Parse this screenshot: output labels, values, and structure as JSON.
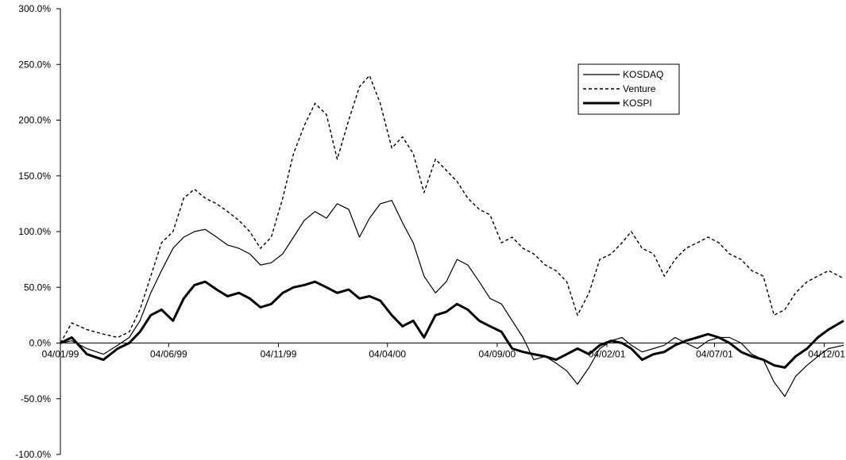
{
  "chart_data": {
    "type": "line",
    "title": "",
    "xlabel": "",
    "ylabel": "",
    "ylim": [
      -100,
      300
    ],
    "y_ticks": [
      "300.0%",
      "250.0%",
      "200.0%",
      "150.0%",
      "100.0%",
      "50.0%",
      "0.0%",
      "-50.0%",
      "-100.0%"
    ],
    "y_tick_values": [
      300,
      250,
      200,
      150,
      100,
      50,
      0,
      -50,
      -100
    ],
    "x_ticks": [
      "04/01/99",
      "04/06/99",
      "04/11/99",
      "04/04/00",
      "04/09/00",
      "04/02/01",
      "04/07/01",
      "04/12/01"
    ],
    "x_tick_dates": [
      "1999-01-04",
      "1999-06-04",
      "1999-11-04",
      "2000-04-04",
      "2000-09-04",
      "2001-02-04",
      "2001-07-04",
      "2001-12-04"
    ],
    "xlim": [
      "1999-01-04",
      "2001-12-31"
    ],
    "grid": false,
    "legend_position": "top-right",
    "legend": [
      "KOSDAQ",
      "Venture",
      "KOSPI"
    ],
    "series": [
      {
        "name": "KOSDAQ",
        "style": "thin-solid",
        "x": [
          "1999-01-04",
          "1999-01-20",
          "1999-02-10",
          "1999-03-05",
          "1999-03-25",
          "1999-04-10",
          "1999-04-25",
          "1999-05-10",
          "1999-05-25",
          "1999-06-10",
          "1999-06-25",
          "1999-07-10",
          "1999-07-25",
          "1999-08-10",
          "1999-08-25",
          "1999-09-10",
          "1999-09-25",
          "1999-10-10",
          "1999-10-25",
          "1999-11-10",
          "1999-11-25",
          "1999-12-10",
          "1999-12-25",
          "2000-01-10",
          "2000-01-25",
          "2000-02-10",
          "2000-02-25",
          "2000-03-10",
          "2000-03-25",
          "2000-04-10",
          "2000-04-25",
          "2000-05-10",
          "2000-05-25",
          "2000-06-10",
          "2000-06-25",
          "2000-07-10",
          "2000-07-25",
          "2000-08-10",
          "2000-08-25",
          "2000-09-10",
          "2000-09-25",
          "2000-10-10",
          "2000-10-25",
          "2000-11-10",
          "2000-11-25",
          "2000-12-10",
          "2000-12-25",
          "2001-01-10",
          "2001-01-25",
          "2001-02-10",
          "2001-02-25",
          "2001-03-10",
          "2001-03-25",
          "2001-04-10",
          "2001-04-25",
          "2001-05-10",
          "2001-05-25",
          "2001-06-10",
          "2001-06-25",
          "2001-07-10",
          "2001-07-25",
          "2001-08-10",
          "2001-08-25",
          "2001-09-10",
          "2001-09-25",
          "2001-10-10",
          "2001-10-25",
          "2001-11-10",
          "2001-11-25",
          "2001-12-10",
          "2001-12-31"
        ],
        "y": [
          0,
          2,
          -5,
          -10,
          -2,
          5,
          20,
          45,
          65,
          85,
          95,
          100,
          102,
          95,
          88,
          85,
          80,
          70,
          72,
          80,
          95,
          110,
          118,
          112,
          125,
          120,
          95,
          112,
          125,
          128,
          108,
          90,
          60,
          45,
          55,
          75,
          70,
          55,
          40,
          35,
          20,
          5,
          -15,
          -12,
          -18,
          -25,
          -37,
          -22,
          -5,
          2,
          5,
          -2,
          -8,
          -5,
          -2,
          5,
          0,
          -5,
          2,
          5,
          5,
          0,
          -10,
          -15,
          -35,
          -48,
          -30,
          -20,
          -12,
          -5,
          -2
        ]
      },
      {
        "name": "Venture",
        "style": "dashed",
        "x": [
          "1999-01-04",
          "1999-01-20",
          "1999-02-10",
          "1999-03-05",
          "1999-03-25",
          "1999-04-10",
          "1999-04-25",
          "1999-05-10",
          "1999-05-25",
          "1999-06-10",
          "1999-06-25",
          "1999-07-10",
          "1999-07-25",
          "1999-08-10",
          "1999-08-25",
          "1999-09-10",
          "1999-09-25",
          "1999-10-10",
          "1999-10-25",
          "1999-11-10",
          "1999-11-25",
          "1999-12-10",
          "1999-12-25",
          "2000-01-10",
          "2000-01-25",
          "2000-02-10",
          "2000-02-25",
          "2000-03-10",
          "2000-03-25",
          "2000-04-10",
          "2000-04-25",
          "2000-05-10",
          "2000-05-25",
          "2000-06-10",
          "2000-06-25",
          "2000-07-10",
          "2000-07-25",
          "2000-08-10",
          "2000-08-25",
          "2000-09-10",
          "2000-09-25",
          "2000-10-10",
          "2000-10-25",
          "2000-11-10",
          "2000-11-25",
          "2000-12-10",
          "2000-12-25",
          "2001-01-10",
          "2001-01-25",
          "2001-02-10",
          "2001-02-25",
          "2001-03-10",
          "2001-03-25",
          "2001-04-10",
          "2001-04-25",
          "2001-05-10",
          "2001-05-25",
          "2001-06-10",
          "2001-06-25",
          "2001-07-10",
          "2001-07-25",
          "2001-08-10",
          "2001-08-25",
          "2001-09-10",
          "2001-09-25",
          "2001-10-10",
          "2001-10-25",
          "2001-11-10",
          "2001-11-25",
          "2001-12-10",
          "2001-12-31"
        ],
        "y": [
          0,
          18,
          12,
          8,
          5,
          10,
          30,
          60,
          90,
          100,
          130,
          138,
          130,
          125,
          118,
          110,
          100,
          85,
          95,
          130,
          170,
          195,
          215,
          205,
          165,
          200,
          230,
          240,
          215,
          175,
          185,
          170,
          135,
          165,
          155,
          145,
          130,
          120,
          115,
          90,
          95,
          85,
          80,
          70,
          65,
          55,
          25,
          45,
          75,
          80,
          90,
          100,
          85,
          80,
          60,
          75,
          85,
          90,
          95,
          90,
          80,
          75,
          65,
          60,
          25,
          30,
          45,
          55,
          60,
          65,
          58
        ]
      },
      {
        "name": "KOSPI",
        "style": "thick-solid",
        "x": [
          "1999-01-04",
          "1999-01-20",
          "1999-02-10",
          "1999-03-05",
          "1999-03-25",
          "1999-04-10",
          "1999-04-25",
          "1999-05-10",
          "1999-05-25",
          "1999-06-10",
          "1999-06-25",
          "1999-07-10",
          "1999-07-25",
          "1999-08-10",
          "1999-08-25",
          "1999-09-10",
          "1999-09-25",
          "1999-10-10",
          "1999-10-25",
          "1999-11-10",
          "1999-11-25",
          "1999-12-10",
          "1999-12-25",
          "2000-01-10",
          "2000-01-25",
          "2000-02-10",
          "2000-02-25",
          "2000-03-10",
          "2000-03-25",
          "2000-04-10",
          "2000-04-25",
          "2000-05-10",
          "2000-05-25",
          "2000-06-10",
          "2000-06-25",
          "2000-07-10",
          "2000-07-25",
          "2000-08-10",
          "2000-08-25",
          "2000-09-10",
          "2000-09-25",
          "2000-10-10",
          "2000-10-25",
          "2000-11-10",
          "2000-11-25",
          "2000-12-10",
          "2000-12-25",
          "2001-01-10",
          "2001-01-25",
          "2001-02-10",
          "2001-02-25",
          "2001-03-10",
          "2001-03-25",
          "2001-04-10",
          "2001-04-25",
          "2001-05-10",
          "2001-05-25",
          "2001-06-10",
          "2001-06-25",
          "2001-07-10",
          "2001-07-25",
          "2001-08-10",
          "2001-08-25",
          "2001-09-10",
          "2001-09-25",
          "2001-10-10",
          "2001-10-25",
          "2001-11-10",
          "2001-11-25",
          "2001-12-10",
          "2001-12-31"
        ],
        "y": [
          0,
          5,
          -10,
          -15,
          -5,
          0,
          10,
          25,
          30,
          20,
          40,
          52,
          55,
          48,
          42,
          45,
          40,
          32,
          35,
          45,
          50,
          52,
          55,
          50,
          45,
          48,
          40,
          42,
          38,
          25,
          15,
          20,
          5,
          25,
          28,
          35,
          30,
          20,
          15,
          10,
          -5,
          -8,
          -10,
          -12,
          -15,
          -10,
          -5,
          -10,
          -2,
          2,
          0,
          -5,
          -15,
          -10,
          -8,
          -2,
          2,
          5,
          8,
          5,
          0,
          -8,
          -12,
          -15,
          -20,
          -22,
          -12,
          -5,
          5,
          12,
          20
        ]
      }
    ]
  }
}
